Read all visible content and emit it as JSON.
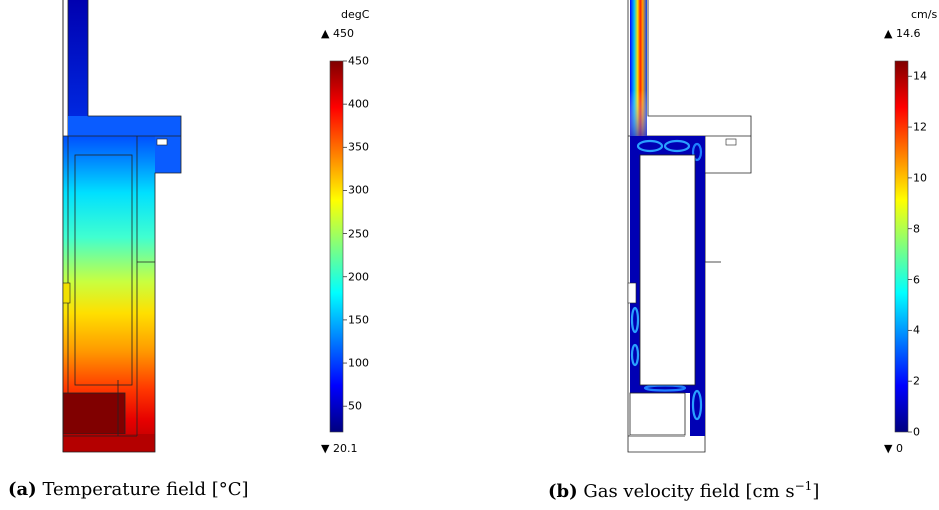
{
  "panel_a": {
    "colorbar": {
      "unit": "degC",
      "max_label": "▲ 450",
      "min_label": "▼ 20.1",
      "min": 20.1,
      "max": 450,
      "ticks": [
        "450",
        "400",
        "350",
        "300",
        "250",
        "200",
        "150",
        "100",
        "50"
      ],
      "tick_values": [
        450,
        400,
        350,
        300,
        250,
        200,
        150,
        100,
        50
      ]
    },
    "caption_label": "(a)",
    "caption_text": "Temperature field [°C]"
  },
  "panel_b": {
    "colorbar": {
      "unit": "cm/s",
      "max_label": "▲ 14.6",
      "min_label": "▼ 0",
      "min": 0,
      "max": 14.6,
      "ticks": [
        "14",
        "12",
        "10",
        "8",
        "6",
        "4",
        "2",
        "0"
      ],
      "tick_values": [
        14,
        12,
        10,
        8,
        6,
        4,
        2,
        0
      ]
    },
    "caption_label": "(b)",
    "caption_text": "Gas velocity field [cm s",
    "caption_exp": "−1",
    "caption_close": "]"
  },
  "colors": {
    "jet": [
      "#00007f",
      "#0000ff",
      "#007fff",
      "#00ffff",
      "#7fff7f",
      "#ffff00",
      "#ff7f00",
      "#ff0000",
      "#7f0000"
    ]
  }
}
